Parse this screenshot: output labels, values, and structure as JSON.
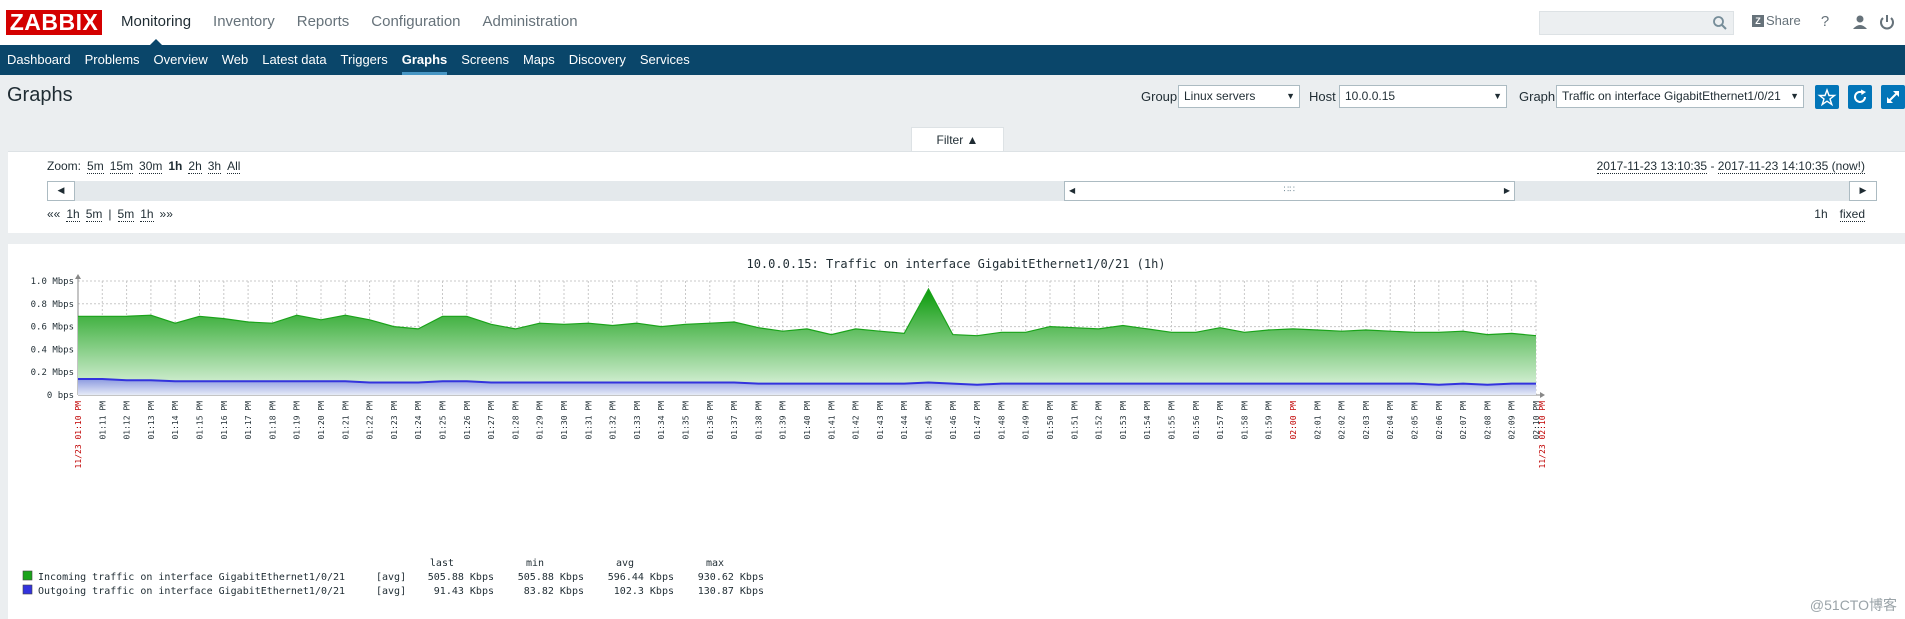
{
  "brand": "ZABBIX",
  "top_menu": [
    "Monitoring",
    "Inventory",
    "Reports",
    "Configuration",
    "Administration"
  ],
  "top_right": {
    "share_label": "Share",
    "help": "?"
  },
  "sub_menu": [
    "Dashboard",
    "Problems",
    "Overview",
    "Web",
    "Latest data",
    "Triggers",
    "Graphs",
    "Screens",
    "Maps",
    "Discovery",
    "Services"
  ],
  "page_title": "Graphs",
  "header_filters": {
    "group_label": "Group",
    "group_value": "Linux servers",
    "host_label": "Host",
    "host_value": "10.0.0.15",
    "graph_label": "Graph",
    "graph_value": "Traffic on interface GigabitEthernet1/0/21"
  },
  "filter": {
    "tab_label": "Filter ▲",
    "zoom_label": "Zoom:",
    "zoom_options": [
      "5m",
      "15m",
      "30m",
      "1h",
      "2h",
      "3h",
      "All"
    ],
    "zoom_selected": "1h",
    "period_from": "2017-11-23 13:10:35",
    "period_sep": " - ",
    "period_to": "2017-11-23 14:10:35 (now!)",
    "nav_back": "««",
    "nav_links": [
      "1h",
      "5m",
      "|",
      "5m",
      "1h"
    ],
    "nav_forward": "»»",
    "period_length": "1h",
    "fixed_label": "fixed"
  },
  "chart_data": {
    "type": "area",
    "title": "10.0.0.15: Traffic on interface GigabitEthernet1/0/21 (1h)",
    "y_ticks": [
      "0 bps",
      "0.2 Mbps",
      "0.4 Mbps",
      "0.6 Mbps",
      "0.8 Mbps",
      "1.0 Mbps"
    ],
    "ylim": [
      0,
      1.0
    ],
    "x_start_label": "11/23 01:10 PM",
    "x_end_label": "11/23 02:10 PM",
    "x_labels": [
      "01:11 PM",
      "01:12 PM",
      "01:13 PM",
      "01:14 PM",
      "01:15 PM",
      "01:16 PM",
      "01:17 PM",
      "01:18 PM",
      "01:19 PM",
      "01:20 PM",
      "01:21 PM",
      "01:22 PM",
      "01:23 PM",
      "01:24 PM",
      "01:25 PM",
      "01:26 PM",
      "01:27 PM",
      "01:28 PM",
      "01:29 PM",
      "01:30 PM",
      "01:31 PM",
      "01:32 PM",
      "01:33 PM",
      "01:34 PM",
      "01:35 PM",
      "01:36 PM",
      "01:37 PM",
      "01:38 PM",
      "01:39 PM",
      "01:40 PM",
      "01:41 PM",
      "01:42 PM",
      "01:43 PM",
      "01:44 PM",
      "01:45 PM",
      "01:46 PM",
      "01:47 PM",
      "01:48 PM",
      "01:49 PM",
      "01:50 PM",
      "01:51 PM",
      "01:52 PM",
      "01:53 PM",
      "01:54 PM",
      "01:55 PM",
      "01:56 PM",
      "01:57 PM",
      "01:58 PM",
      "01:59 PM",
      "02:00 PM",
      "02:01 PM",
      "02:02 PM",
      "02:03 PM",
      "02:04 PM",
      "02:05 PM",
      "02:06 PM",
      "02:07 PM",
      "02:08 PM",
      "02:09 PM",
      "02:10 PM"
    ],
    "x_highlight": [
      "02:00 PM"
    ],
    "series": [
      {
        "name": "Incoming traffic on interface GigabitEthernet1/0/21",
        "color": "#1aa31a",
        "values": [
          0.69,
          0.69,
          0.69,
          0.7,
          0.63,
          0.69,
          0.67,
          0.64,
          0.63,
          0.7,
          0.66,
          0.7,
          0.66,
          0.6,
          0.58,
          0.69,
          0.69,
          0.62,
          0.58,
          0.63,
          0.62,
          0.63,
          0.61,
          0.63,
          0.6,
          0.62,
          0.63,
          0.64,
          0.59,
          0.56,
          0.58,
          0.53,
          0.58,
          0.56,
          0.54,
          0.93,
          0.53,
          0.52,
          0.55,
          0.55,
          0.6,
          0.59,
          0.58,
          0.61,
          0.58,
          0.55,
          0.55,
          0.59,
          0.55,
          0.57,
          0.58,
          0.57,
          0.56,
          0.57,
          0.56,
          0.55,
          0.55,
          0.56,
          0.53,
          0.54,
          0.52
        ]
      },
      {
        "name": "Outgoing traffic on interface GigabitEthernet1/0/21",
        "color": "#3333dd",
        "values": [
          0.14,
          0.14,
          0.13,
          0.13,
          0.12,
          0.12,
          0.12,
          0.12,
          0.12,
          0.12,
          0.12,
          0.12,
          0.11,
          0.11,
          0.11,
          0.12,
          0.12,
          0.11,
          0.11,
          0.11,
          0.11,
          0.11,
          0.11,
          0.11,
          0.11,
          0.11,
          0.11,
          0.11,
          0.1,
          0.1,
          0.1,
          0.1,
          0.1,
          0.1,
          0.1,
          0.11,
          0.1,
          0.09,
          0.1,
          0.1,
          0.1,
          0.1,
          0.1,
          0.1,
          0.1,
          0.1,
          0.1,
          0.1,
          0.1,
          0.1,
          0.1,
          0.1,
          0.1,
          0.1,
          0.1,
          0.1,
          0.09,
          0.1,
          0.09,
          0.1,
          0.1
        ]
      }
    ],
    "legend_header": {
      "last": "last",
      "min": "min",
      "avg": "avg",
      "max": "max"
    },
    "legend_rows": [
      {
        "name": "Incoming traffic on interface GigabitEthernet1/0/21",
        "func": "[avg]",
        "last": "505.88 Kbps",
        "min": "505.88 Kbps",
        "avg": "596.44 Kbps",
        "max": "930.62 Kbps",
        "color": "#1aa31a"
      },
      {
        "name": "Outgoing traffic on interface GigabitEthernet1/0/21",
        "func": "[avg]",
        "last": "91.43 Kbps",
        "min": "83.82 Kbps",
        "avg": "102.3 Kbps",
        "max": "130.87 Kbps",
        "color": "#3333dd"
      }
    ]
  },
  "watermark": "@51CTO博客"
}
